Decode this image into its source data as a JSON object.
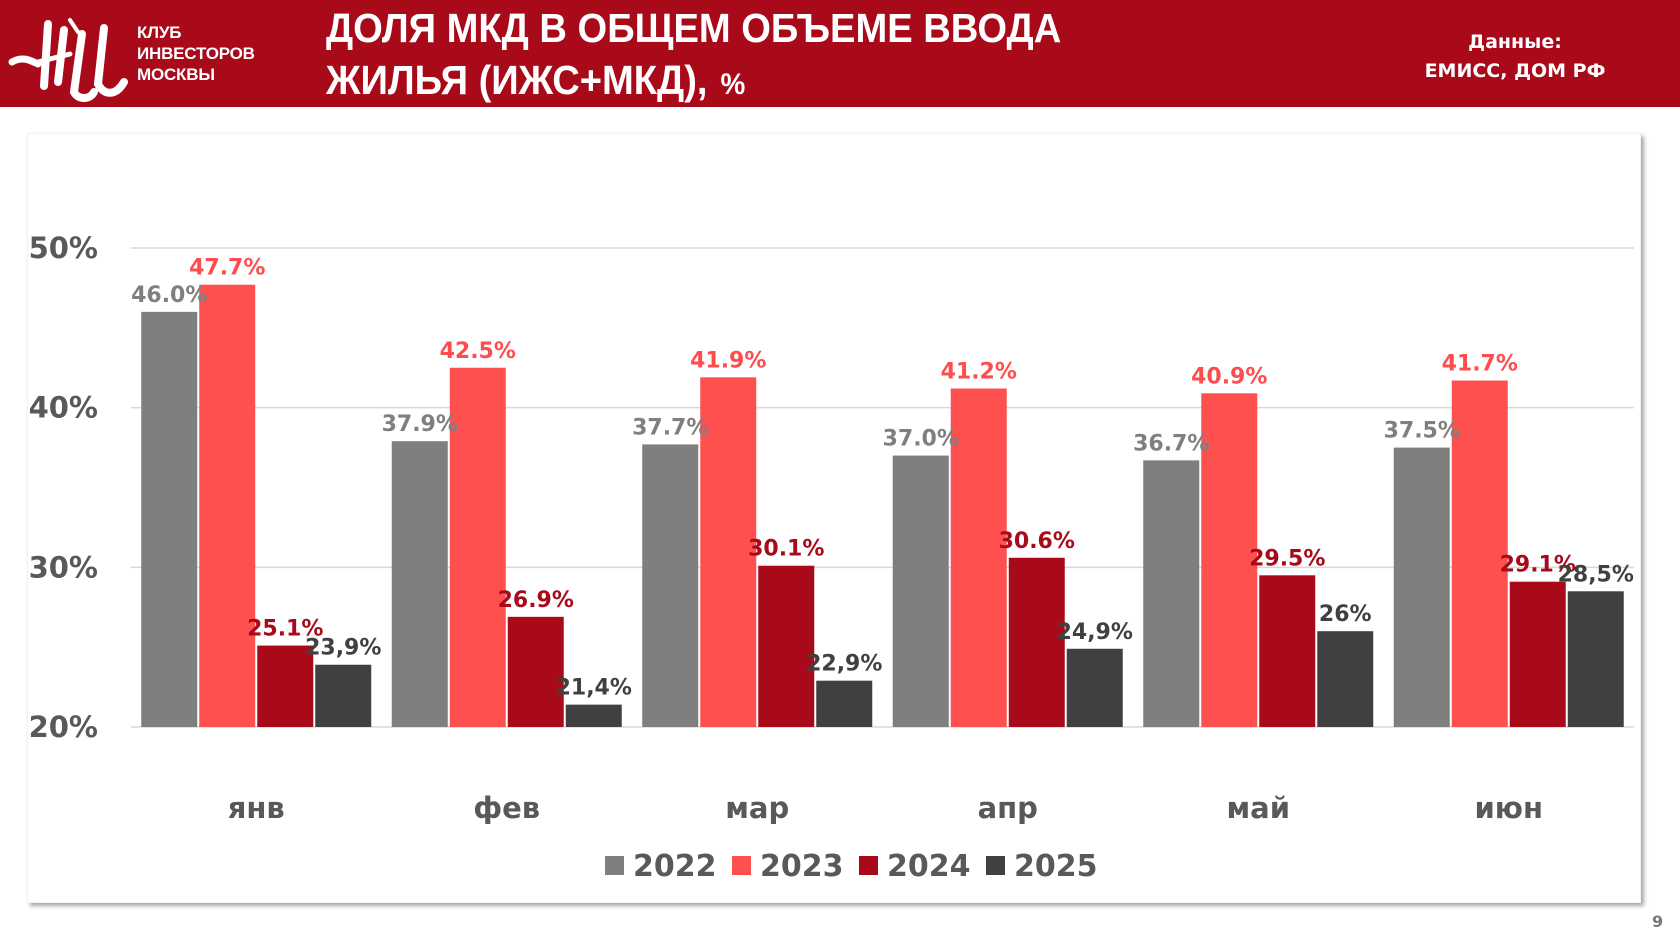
{
  "header": {
    "logo_text": [
      "КЛУБ",
      "ИНВЕСТОРОВ",
      "МОСКВЫ"
    ],
    "title_line1": "ДОЛЯ МКД В ОБЩЕМ ОБЪЕМЕ ВВОДА",
    "title_line2": "ЖИЛЬЯ (ИЖС+МКД),",
    "title_unit": "%",
    "source_label": "Данные:",
    "source_value": "ЕМИСС, ДОМ РФ",
    "brand_color": "#a80a1a"
  },
  "page_number": "9",
  "chart_data": {
    "type": "bar",
    "title": "Доля МКД в общем объеме ввода жилья (ИЖС+МКД), %",
    "xlabel": "",
    "ylabel": "",
    "ylim": [
      20,
      50
    ],
    "yticks": [
      20,
      30,
      40,
      50
    ],
    "ytick_labels": [
      "20%",
      "30%",
      "40%",
      "50%"
    ],
    "grid": true,
    "legend_position": "bottom",
    "categories": [
      "янв",
      "фев",
      "мар",
      "апр",
      "май",
      "июн"
    ],
    "series": [
      {
        "name": "2022",
        "color": "#7f7f7f",
        "label_color": "#7f7f7f",
        "values": [
          46.0,
          37.9,
          37.7,
          37.0,
          36.7,
          37.5
        ],
        "labels": [
          "46.0%",
          "37.9%",
          "37.7%",
          "37.0%",
          "36.7%",
          "37.5%"
        ]
      },
      {
        "name": "2023",
        "color": "#ff5050",
        "label_color": "#ff4d4d",
        "values": [
          47.7,
          42.5,
          41.9,
          41.2,
          40.9,
          41.7
        ],
        "labels": [
          "47.7%",
          "42.5%",
          "41.9%",
          "41.2%",
          "40.9%",
          "41.7%"
        ]
      },
      {
        "name": "2024",
        "color": "#a80a1a",
        "label_color": "#a80a1a",
        "values": [
          25.1,
          26.9,
          30.1,
          30.6,
          29.5,
          29.1
        ],
        "labels": [
          "25.1%",
          "26.9%",
          "30.1%",
          "30.6%",
          "29.5%",
          "29.1%"
        ]
      },
      {
        "name": "2025",
        "color": "#404040",
        "label_color": "#404040",
        "values": [
          23.9,
          21.4,
          22.9,
          24.9,
          26.0,
          28.5
        ],
        "labels": [
          "23,9%",
          "21,4%",
          "22,9%",
          "24,9%",
          "26%",
          "28,5%"
        ]
      }
    ]
  }
}
